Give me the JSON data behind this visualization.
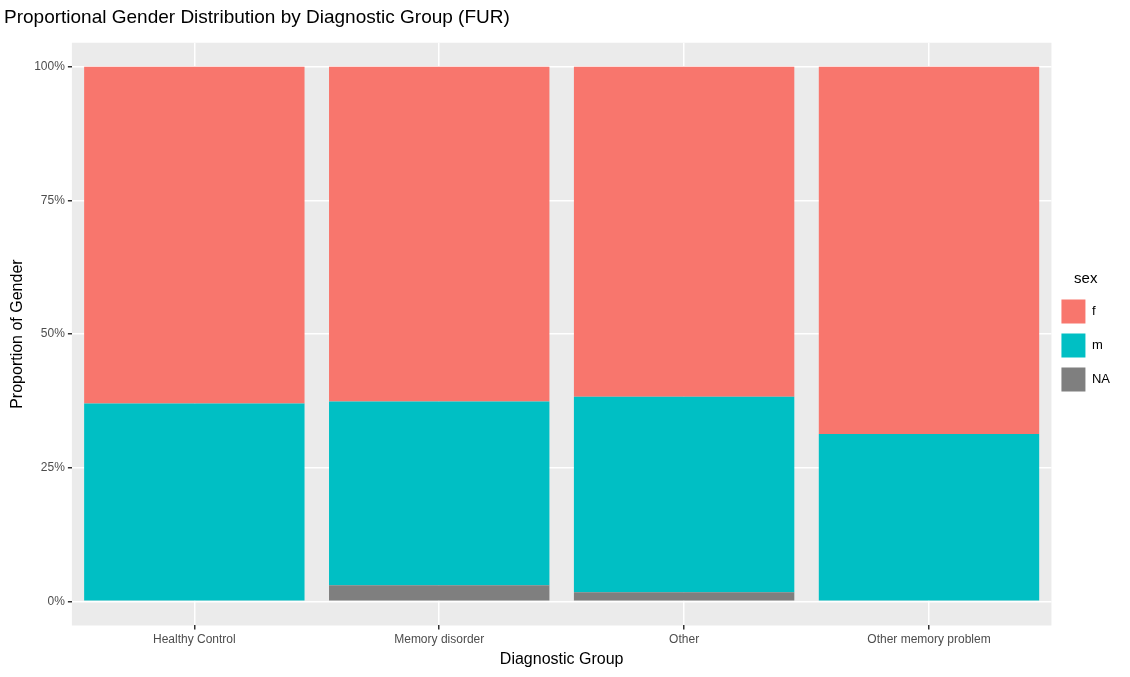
{
  "chart_data": {
    "type": "bar",
    "title": "Proportional Gender Distribution by Diagnostic Group (FUR)",
    "xlabel": "Diagnostic Group",
    "ylabel": "Proportion of Gender",
    "legend_title": "sex",
    "categories": [
      "Healthy Control",
      "Memory disorder",
      "Other",
      "Other memory problem"
    ],
    "stacked": true,
    "series": [
      {
        "name": "NA",
        "color": "#7f7f7f",
        "values": [
          0,
          3.0,
          1.7,
          0
        ]
      },
      {
        "name": "m",
        "color": "#00bfc4",
        "values": [
          37.0,
          34.4,
          36.6,
          31.3
        ]
      },
      {
        "name": "f",
        "color": "#f8766d",
        "values": [
          63.0,
          62.6,
          61.7,
          68.7
        ]
      }
    ],
    "ylim": [
      -4.5,
      104.5
    ],
    "yticks": [
      {
        "value": 0,
        "label": "0%"
      },
      {
        "value": 25,
        "label": "25%"
      },
      {
        "value": 50,
        "label": "50%"
      },
      {
        "value": 75,
        "label": "75%"
      },
      {
        "value": 100,
        "label": "100%"
      }
    ],
    "grid": true,
    "legend": "right"
  }
}
